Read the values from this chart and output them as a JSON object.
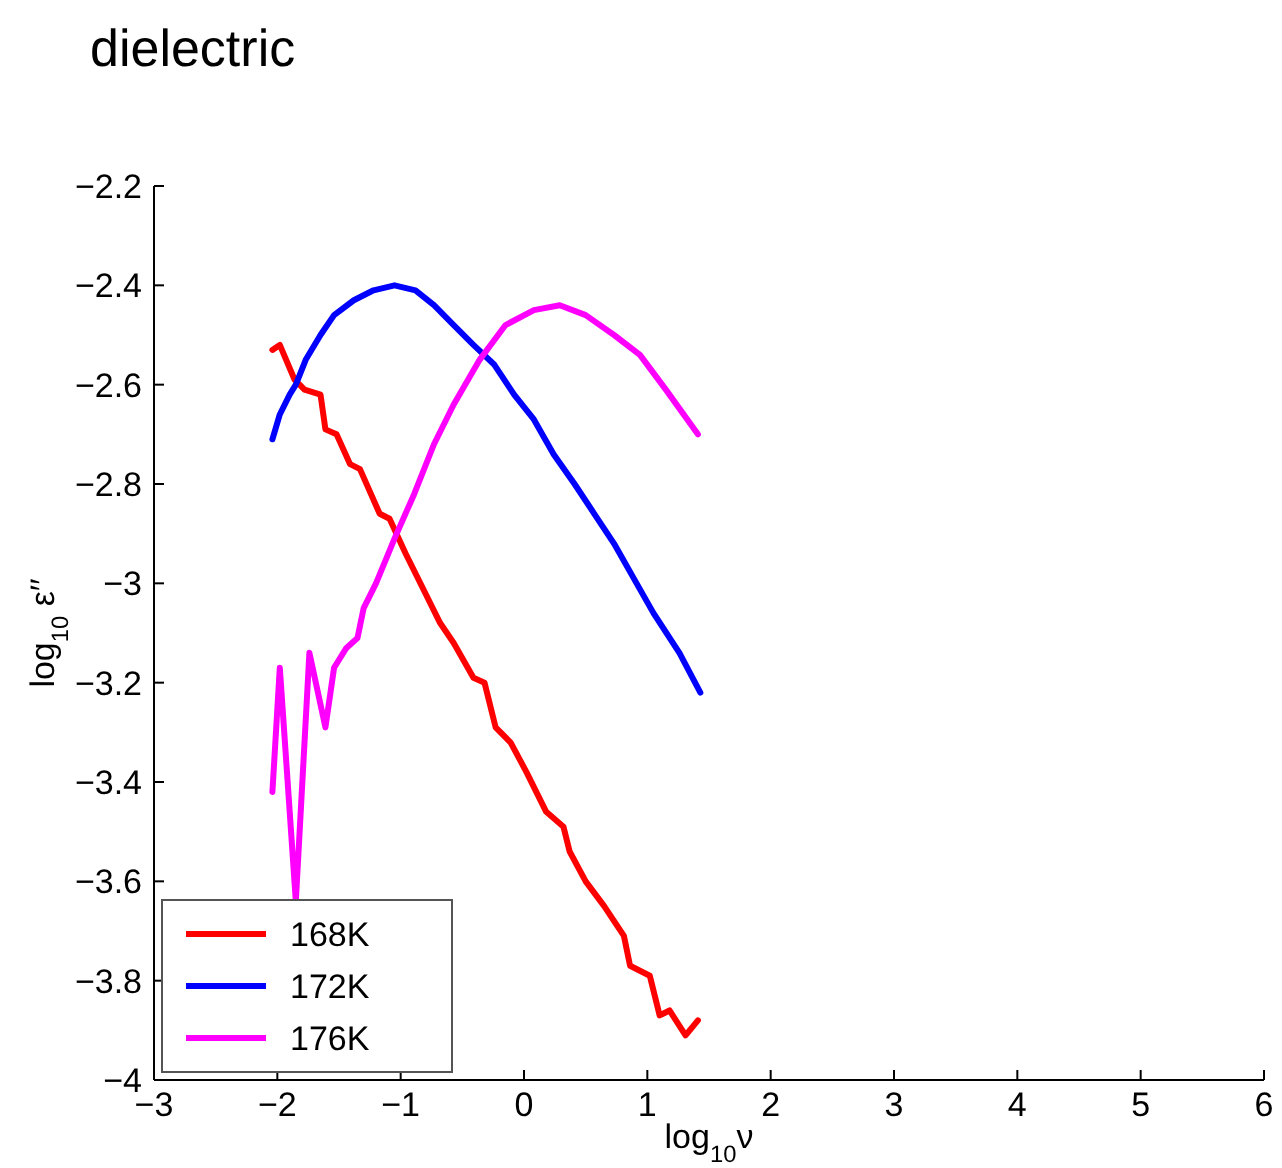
{
  "chart_data": {
    "type": "line",
    "title": "dielectric",
    "xlabel": "log$_{10}$ν",
    "ylabel": "log$_{10}$ ε′′",
    "xlim": [
      -3,
      6
    ],
    "xticks": [
      -3,
      -2,
      -1,
      0,
      1,
      2,
      3,
      4,
      5,
      6
    ],
    "ylim": [
      -4,
      -2.2
    ],
    "yticks": [
      -4,
      -3.8,
      -3.6,
      -3.4,
      -3.2,
      -3,
      -2.8,
      -2.6,
      -2.4,
      -2.2
    ],
    "grid": false,
    "legend": "bottom left",
    "line_style": "solid",
    "series": [
      {
        "name": "168K",
        "color": "#ff0000",
        "x": [
          -2.04,
          -1.98,
          -1.86,
          -1.78,
          -1.65,
          -1.61,
          -1.52,
          -1.41,
          -1.33,
          -1.17,
          -1.09,
          -0.96,
          -0.8,
          -0.68,
          -0.57,
          -0.41,
          -0.32,
          -0.23,
          -0.11,
          0.02,
          0.18,
          0.32,
          0.37,
          0.5,
          0.65,
          0.81,
          0.86,
          1.02,
          1.1,
          1.18,
          1.31,
          1.41
        ],
        "values": [
          -2.53,
          -2.52,
          -2.59,
          -2.61,
          -2.62,
          -2.69,
          -2.7,
          -2.76,
          -2.77,
          -2.86,
          -2.87,
          -2.94,
          -3.02,
          -3.08,
          -3.12,
          -3.19,
          -3.2,
          -3.29,
          -3.32,
          -3.38,
          -3.46,
          -3.49,
          -3.54,
          -3.6,
          -3.65,
          -3.71,
          -3.77,
          -3.79,
          -3.87,
          -3.86,
          -3.91,
          -3.88
        ]
      },
      {
        "name": "172K",
        "color": "#0000ff",
        "x": [
          -2.04,
          -1.98,
          -1.9,
          -1.85,
          -1.77,
          -1.65,
          -1.54,
          -1.38,
          -1.22,
          -1.05,
          -0.88,
          -0.73,
          -0.57,
          -0.41,
          -0.24,
          -0.08,
          0.08,
          0.24,
          0.41,
          0.57,
          0.73,
          0.89,
          1.05,
          1.26,
          1.43
        ],
        "values": [
          -2.71,
          -2.66,
          -2.62,
          -2.6,
          -2.55,
          -2.5,
          -2.46,
          -2.43,
          -2.41,
          -2.4,
          -2.41,
          -2.44,
          -2.48,
          -2.52,
          -2.56,
          -2.62,
          -2.67,
          -2.74,
          -2.8,
          -2.86,
          -2.92,
          -2.99,
          -3.06,
          -3.14,
          -3.22
        ]
      },
      {
        "name": "176K",
        "color": "#ff00ff",
        "x": [
          -2.04,
          -1.98,
          -1.85,
          -1.74,
          -1.61,
          -1.54,
          -1.44,
          -1.35,
          -1.3,
          -1.2,
          -1.05,
          -0.89,
          -0.73,
          -0.57,
          -0.36,
          -0.15,
          0.08,
          0.29,
          0.5,
          0.73,
          0.94,
          1.15,
          1.41
        ],
        "values": [
          -3.42,
          -3.17,
          -3.64,
          -3.14,
          -3.29,
          -3.17,
          -3.13,
          -3.11,
          -3.05,
          -3.0,
          -2.91,
          -2.82,
          -2.72,
          -2.64,
          -2.55,
          -2.48,
          -2.45,
          -2.44,
          -2.46,
          -2.5,
          -2.54,
          -2.61,
          -2.7
        ]
      }
    ]
  }
}
